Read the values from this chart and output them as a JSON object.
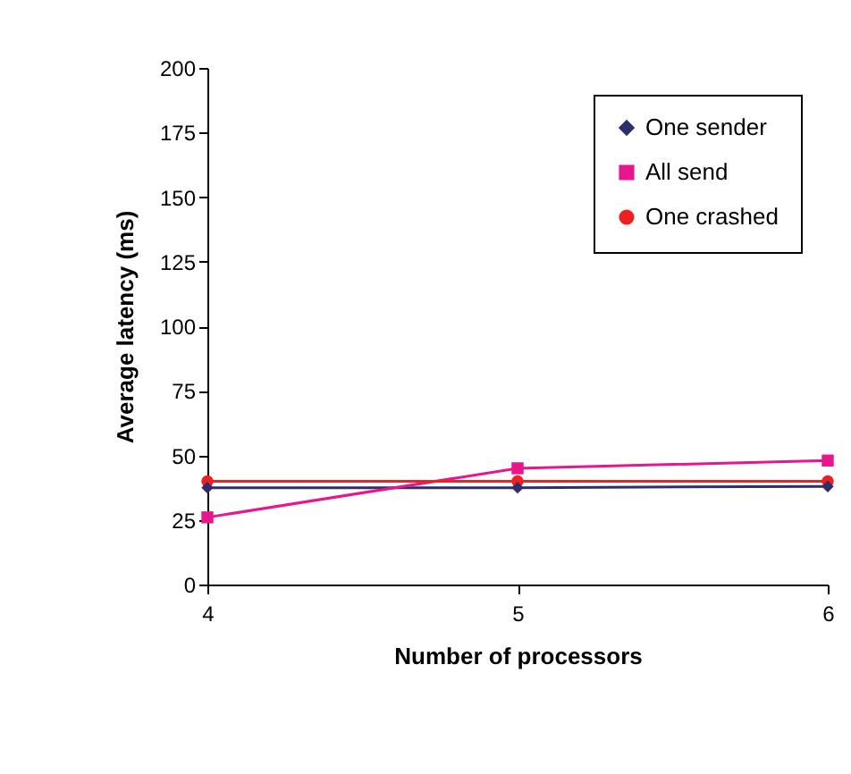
{
  "chart_data": {
    "type": "line",
    "xlabel": "Number of processors",
    "ylabel": "Average latency (ms)",
    "x": [
      4,
      5,
      6
    ],
    "xlim": [
      4,
      6
    ],
    "xticks": [
      4,
      5,
      6
    ],
    "ylim": [
      0,
      200
    ],
    "yticks": [
      0,
      25,
      50,
      75,
      100,
      125,
      150,
      175,
      200
    ],
    "grid": false,
    "legend": "top right",
    "series": [
      {
        "name": "One sender",
        "color": "#2e2e6e",
        "marker": "diamond",
        "values": [
          37.5,
          37.5,
          38
        ]
      },
      {
        "name": "All send",
        "color": "#e8158c",
        "marker": "square",
        "values": [
          26,
          45,
          48
        ]
      },
      {
        "name": "One crashed",
        "color": "#f02020",
        "marker": "circle",
        "values": [
          40,
          40,
          40
        ]
      }
    ]
  }
}
